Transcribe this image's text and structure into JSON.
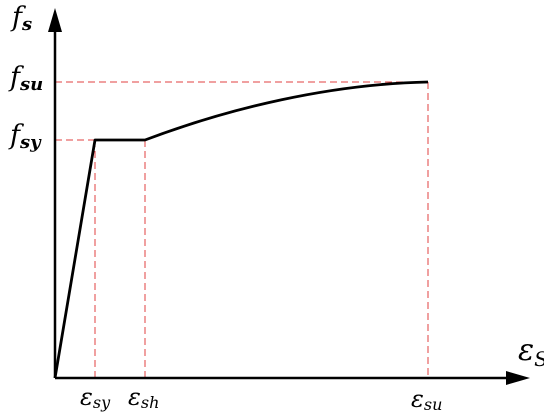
{
  "axes": {
    "y_symbol": "f",
    "y_subscript": "s",
    "x_symbol": "ε",
    "x_subscript": "S"
  },
  "y_levels": [
    {
      "symbol": "f",
      "subscript": "su"
    },
    {
      "symbol": "f",
      "subscript": "sy"
    }
  ],
  "x_points": [
    {
      "symbol": "ε",
      "subscript": "sy"
    },
    {
      "symbol": "ε",
      "subscript": "sh"
    },
    {
      "symbol": "ε",
      "subscript": "su"
    }
  ],
  "colors": {
    "curve": "#000000",
    "guides": "#e04040"
  }
}
